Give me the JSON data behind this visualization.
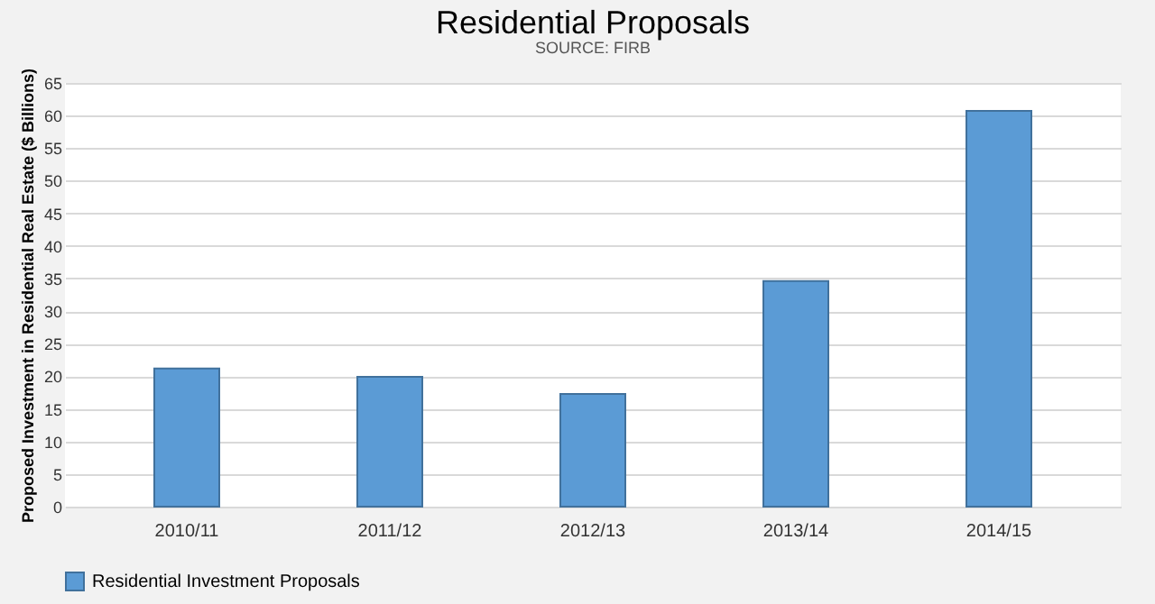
{
  "chart_data": {
    "type": "bar",
    "title": "Residential Proposals",
    "ylabel": "Proposed Investment in Residential Real Estate ($ Billions)",
    "annotations": [
      "SOURCE: FIRB"
    ],
    "categories": [
      "2010/11",
      "2011/12",
      "2012/13",
      "2013/14",
      "2014/15"
    ],
    "series": [
      {
        "name": "Residential Investment Proposals",
        "color": "#5b9bd5",
        "values": [
          21.2,
          19.9,
          17.3,
          34.6,
          60.7
        ]
      }
    ],
    "ylim": [
      0,
      65
    ],
    "yticks": [
      0,
      5,
      10,
      15,
      20,
      25,
      30,
      35,
      40,
      45,
      50,
      55,
      60,
      65
    ],
    "grid": "y",
    "legend": "bottom"
  }
}
